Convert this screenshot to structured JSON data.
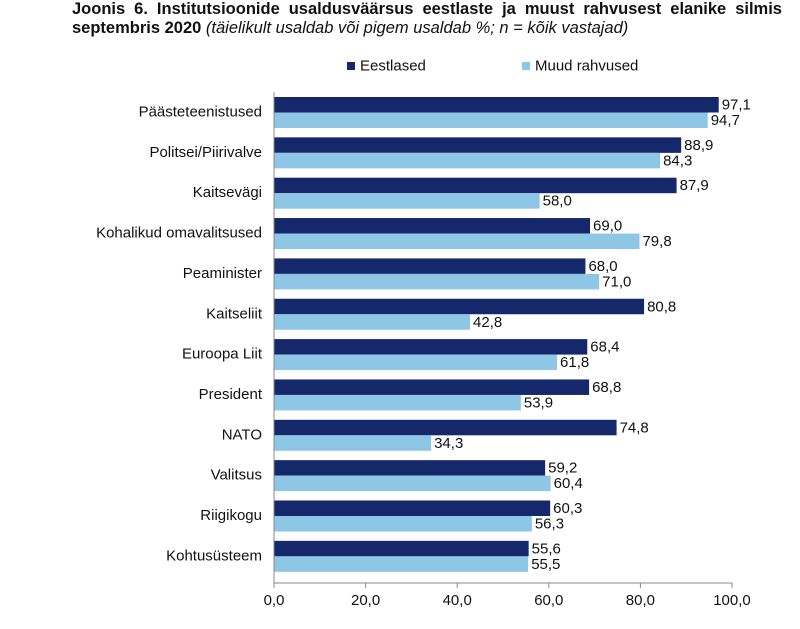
{
  "header": {
    "title": "Joonis 6. Institutsioonide usaldusväärsus eestlaste ja muust rahvusest elanike silmis septembris 2020",
    "subtitle": "(täielikult usaldab või pigem usaldab %; n = kõik vastajad)"
  },
  "chart_data": {
    "type": "bar",
    "orientation": "horizontal",
    "categories": [
      "Päästeteenistused",
      "Politsei/Piirivalve",
      "Kaitsevägi",
      "Kohalikud omavalitsused",
      "Peaminister",
      "Kaitseliit",
      "Euroopa Liit",
      "President",
      "NATO",
      "Valitsus",
      "Riigikogu",
      "Kohtusüsteem"
    ],
    "series": [
      {
        "name": "Eestlased",
        "color": "#14286b",
        "values": [
          97.1,
          88.9,
          87.9,
          69.0,
          68.0,
          80.8,
          68.4,
          68.8,
          74.8,
          59.2,
          60.3,
          55.6
        ],
        "labels": [
          "97,1",
          "88,9",
          "87,9",
          "69,0",
          "68,0",
          "80,8",
          "68,4",
          "68,8",
          "74,8",
          "59,2",
          "60,3",
          "55,6"
        ]
      },
      {
        "name": "Muud rahvused",
        "color": "#8ec6e6",
        "values": [
          94.7,
          84.3,
          58.0,
          79.8,
          71.0,
          42.8,
          61.8,
          53.9,
          34.3,
          60.4,
          56.3,
          55.5
        ],
        "labels": [
          "94,7",
          "84,3",
          "58,0",
          "79,8",
          "71,0",
          "42,8",
          "61,8",
          "53,9",
          "34,3",
          "60,4",
          "56,3",
          "55,5"
        ]
      }
    ],
    "xlim": [
      0,
      100
    ],
    "xticks": [
      "0,0",
      "20,0",
      "40,0",
      "60,0",
      "80,0",
      "100,0"
    ],
    "legend_position": "top",
    "grid": false
  }
}
